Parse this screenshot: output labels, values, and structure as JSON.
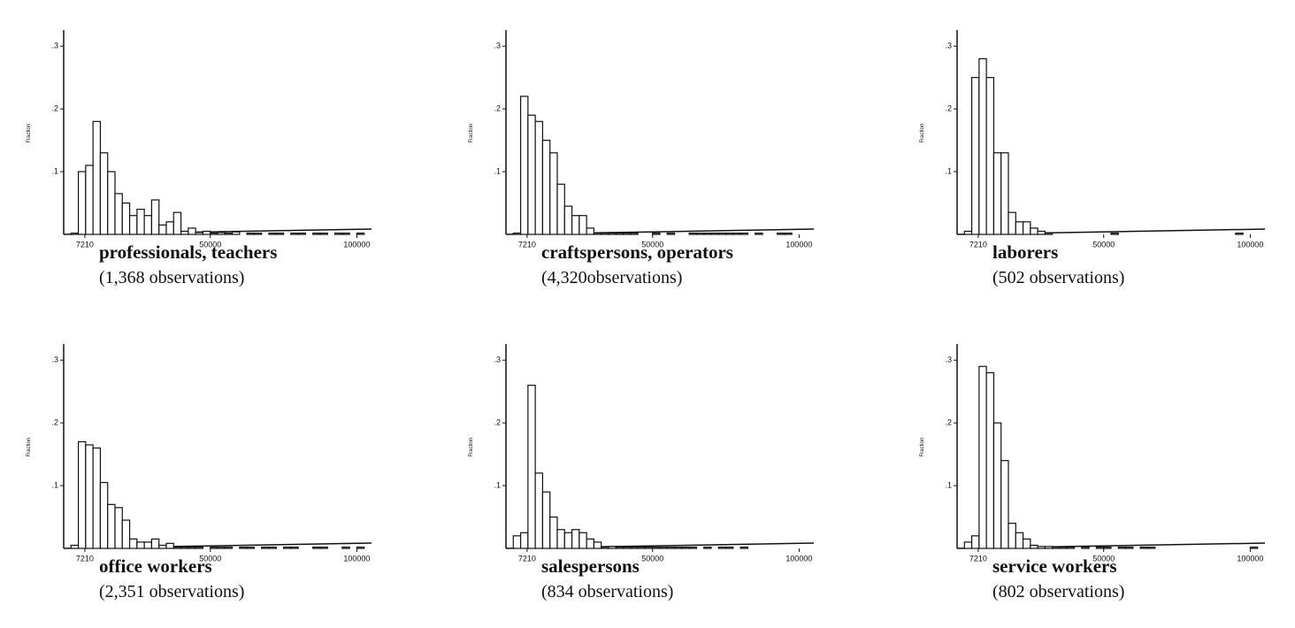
{
  "chart_data": [
    {
      "type": "histogram",
      "title": "professionals, teachers",
      "subtitle": "(1,368 observations)",
      "y_label": "Fraction",
      "bins": [
        2500,
        5000,
        7500,
        10000,
        12500,
        15000,
        17500,
        20000,
        22500,
        25000,
        27500,
        30000,
        32500,
        35000,
        37500,
        40000,
        42500,
        45000,
        47500,
        50000,
        52500,
        55000,
        57500,
        60000,
        62500,
        65000,
        67500,
        70000,
        72500,
        75000,
        77500,
        80000,
        82500,
        85000,
        87500,
        90000,
        92500,
        95000,
        97500,
        100000,
        102500
      ],
      "values": [
        0.002,
        0.1,
        0.11,
        0.18,
        0.13,
        0.1,
        0.065,
        0.05,
        0.03,
        0.04,
        0.03,
        0.055,
        0.015,
        0.02,
        0.035,
        0.005,
        0.01,
        0.003,
        0.005,
        0.002,
        0.003,
        0.002,
        0.004,
        0,
        0.002,
        0.002,
        0,
        0.002,
        0.002,
        0,
        0.002,
        0.002,
        0,
        0.002,
        0.002,
        0,
        0.002,
        0.002,
        0,
        0.002
      ],
      "xlim": [
        0,
        105000
      ],
      "xticks": [
        7210,
        50000,
        100000
      ],
      "ylim": [
        0,
        0.32
      ],
      "yticks": [
        {
          "value": 0.1,
          "label": ".1"
        },
        {
          "value": 0.2,
          "label": ".2"
        },
        {
          "value": 0.3,
          "label": ".3"
        }
      ]
    },
    {
      "type": "histogram",
      "title": "craftspersons, operators",
      "subtitle": "(4,320observations)",
      "y_label": "Fraction",
      "bins": [
        2500,
        5000,
        7500,
        10000,
        12500,
        15000,
        17500,
        20000,
        22500,
        25000,
        27500,
        30000,
        32500,
        35000,
        37500,
        40000,
        42500,
        45000,
        47500,
        50000,
        52500,
        55000,
        57500,
        60000,
        62500,
        65000,
        67500,
        70000,
        72500,
        75000,
        77500,
        80000,
        82500,
        85000,
        87500,
        90000,
        92500,
        95000,
        97500,
        100000,
        102500
      ],
      "values": [
        0.002,
        0.22,
        0.19,
        0.18,
        0.15,
        0.13,
        0.08,
        0.045,
        0.03,
        0.03,
        0.01,
        0.002,
        0.002,
        0.002,
        0.002,
        0.002,
        0.002,
        0,
        0,
        0.002,
        0,
        0.002,
        0,
        0,
        0.002,
        0.002,
        0.002,
        0.002,
        0.002,
        0.002,
        0.002,
        0.002,
        0,
        0.002,
        0,
        0,
        0.002,
        0.002,
        0,
        0
      ],
      "xlim": [
        0,
        105000
      ],
      "xticks": [
        7210,
        50000,
        100000
      ],
      "ylim": [
        0,
        0.32
      ],
      "yticks": [
        {
          "value": 0.1,
          "label": ".1"
        },
        {
          "value": 0.2,
          "label": ".2"
        },
        {
          "value": 0.3,
          "label": ".3"
        }
      ]
    },
    {
      "type": "histogram",
      "title": "laborers",
      "subtitle": "(502 observations)",
      "y_label": "Fraction",
      "bins": [
        2500,
        5000,
        7500,
        10000,
        12500,
        15000,
        17500,
        20000,
        22500,
        25000,
        27500,
        30000,
        32500,
        35000,
        37500,
        40000,
        42500,
        45000,
        47500,
        50000,
        52500,
        55000,
        57500,
        60000,
        62500,
        65000,
        67500,
        70000,
        72500,
        75000,
        77500,
        80000,
        82500,
        85000,
        87500,
        90000,
        92500,
        95000,
        97500,
        100000,
        102500
      ],
      "values": [
        0.005,
        0.25,
        0.28,
        0.25,
        0.13,
        0.13,
        0.035,
        0.02,
        0.02,
        0.01,
        0.005,
        0.002,
        0,
        0,
        0,
        0,
        0,
        0,
        0,
        0,
        0.002,
        0,
        0,
        0,
        0,
        0,
        0,
        0,
        0,
        0,
        0,
        0,
        0,
        0,
        0,
        0,
        0,
        0.002,
        0,
        0
      ],
      "xlim": [
        0,
        105000
      ],
      "xticks": [
        7210,
        50000,
        100000
      ],
      "ylim": [
        0,
        0.32
      ],
      "yticks": [
        {
          "value": 0.1,
          "label": ".1"
        },
        {
          "value": 0.2,
          "label": ".2"
        },
        {
          "value": 0.3,
          "label": ".3"
        }
      ]
    },
    {
      "type": "histogram",
      "title": "office workers",
      "subtitle": "(2,351 observations)",
      "y_label": "Fraction",
      "bins": [
        2500,
        5000,
        7500,
        10000,
        12500,
        15000,
        17500,
        20000,
        22500,
        25000,
        27500,
        30000,
        32500,
        35000,
        37500,
        40000,
        42500,
        45000,
        47500,
        50000,
        52500,
        55000,
        57500,
        60000,
        62500,
        65000,
        67500,
        70000,
        72500,
        75000,
        77500,
        80000,
        82500,
        85000,
        87500,
        90000,
        92500,
        95000,
        97500,
        100000,
        102500
      ],
      "values": [
        0.005,
        0.17,
        0.165,
        0.16,
        0.105,
        0.07,
        0.065,
        0.045,
        0.015,
        0.01,
        0.01,
        0.015,
        0.005,
        0.008,
        0.002,
        0.002,
        0.002,
        0.002,
        0,
        0.002,
        0.002,
        0.002,
        0,
        0.002,
        0.002,
        0,
        0.002,
        0.002,
        0,
        0.002,
        0.002,
        0,
        0,
        0.002,
        0.002,
        0,
        0,
        0.002,
        0,
        0.002
      ],
      "xlim": [
        0,
        105000
      ],
      "xticks": [
        7210,
        50000,
        100000
      ],
      "ylim": [
        0,
        0.32
      ],
      "yticks": [
        {
          "value": 0.1,
          "label": ".1"
        },
        {
          "value": 0.2,
          "label": ".2"
        },
        {
          "value": 0.3,
          "label": ".3"
        }
      ]
    },
    {
      "type": "histogram",
      "title": "salespersons",
      "subtitle": "(834 observations)",
      "y_label": "Fraction",
      "bins": [
        2500,
        5000,
        7500,
        10000,
        12500,
        15000,
        17500,
        20000,
        22500,
        25000,
        27500,
        30000,
        32500,
        35000,
        37500,
        40000,
        42500,
        45000,
        47500,
        50000,
        52500,
        55000,
        57500,
        60000,
        62500,
        65000,
        67500,
        70000,
        72500,
        75000,
        77500,
        80000,
        82500,
        85000,
        87500,
        90000,
        92500,
        95000,
        97500,
        100000,
        102500
      ],
      "values": [
        0.02,
        0.025,
        0.26,
        0.12,
        0.09,
        0.05,
        0.03,
        0.025,
        0.03,
        0.025,
        0.015,
        0.01,
        0.002,
        0.003,
        0.002,
        0.002,
        0.002,
        0.002,
        0.002,
        0.002,
        0.002,
        0.002,
        0.002,
        0.002,
        0.002,
        0,
        0.002,
        0,
        0.002,
        0.002,
        0,
        0.002,
        0,
        0,
        0,
        0,
        0,
        0,
        0,
        0
      ],
      "xlim": [
        0,
        105000
      ],
      "xticks": [
        7210,
        50000,
        100000
      ],
      "ylim": [
        0,
        0.32
      ],
      "yticks": [
        {
          "value": 0.1,
          "label": ".1"
        },
        {
          "value": 0.2,
          "label": ".2"
        },
        {
          "value": 0.3,
          "label": ".3"
        }
      ]
    },
    {
      "type": "histogram",
      "title": "service workers",
      "subtitle": "(802 observations)",
      "y_label": "Fraction",
      "bins": [
        2500,
        5000,
        7500,
        10000,
        12500,
        15000,
        17500,
        20000,
        22500,
        25000,
        27500,
        30000,
        32500,
        35000,
        37500,
        40000,
        42500,
        45000,
        47500,
        50000,
        52500,
        55000,
        57500,
        60000,
        62500,
        65000,
        67500,
        70000,
        72500,
        75000,
        77500,
        80000,
        82500,
        85000,
        87500,
        90000,
        92500,
        95000,
        97500,
        100000,
        102500
      ],
      "values": [
        0.01,
        0.02,
        0.29,
        0.28,
        0.2,
        0.14,
        0.04,
        0.025,
        0.015,
        0.005,
        0.003,
        0.003,
        0.002,
        0.002,
        0.002,
        0,
        0.002,
        0,
        0.002,
        0.002,
        0,
        0.002,
        0.002,
        0,
        0.002,
        0.002,
        0,
        0,
        0,
        0,
        0,
        0,
        0,
        0,
        0,
        0,
        0,
        0,
        0,
        0.002
      ],
      "xlim": [
        0,
        105000
      ],
      "xticks": [
        7210,
        50000,
        100000
      ],
      "ylim": [
        0,
        0.32
      ],
      "yticks": [
        {
          "value": 0.1,
          "label": ".1"
        },
        {
          "value": 0.2,
          "label": ".2"
        },
        {
          "value": 0.3,
          "label": ".3"
        }
      ]
    }
  ]
}
